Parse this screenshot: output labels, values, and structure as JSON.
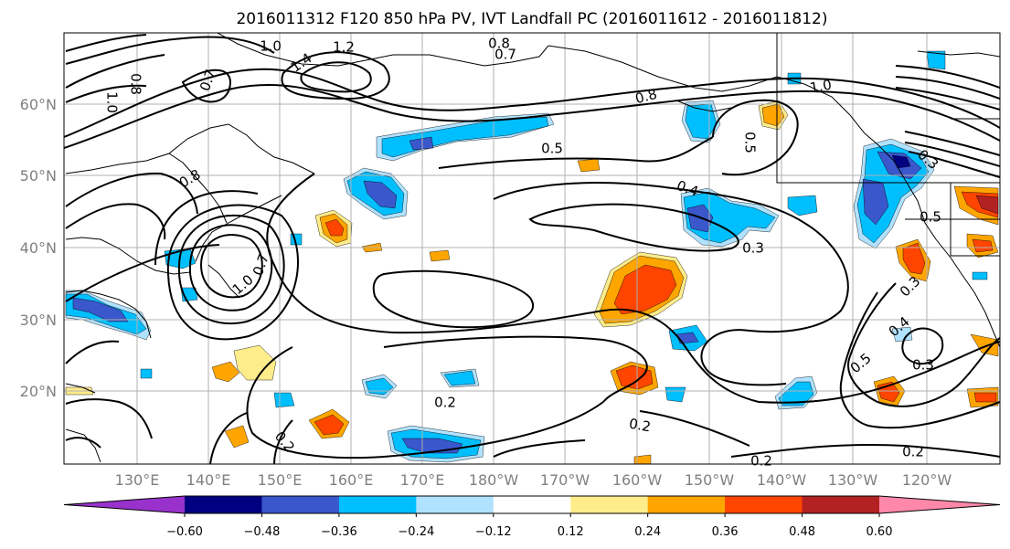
{
  "title": "2016011312 F120 850 hPa PV, IVT Landfall PC (2016011612 - 2016011812)",
  "map": {
    "lon_range": [
      120,
      251
    ],
    "lat_range": [
      10,
      70
    ],
    "lat_ticks": [
      "20°N",
      "30°N",
      "40°N",
      "50°N",
      "60°N"
    ],
    "lon_ticks": [
      "130°E",
      "140°E",
      "150°E",
      "160°E",
      "170°E",
      "180°W",
      "170°W",
      "160°W",
      "150°W",
      "140°W",
      "130°W",
      "120°W"
    ],
    "grid": true,
    "projection": "PlateCarree"
  },
  "colorbar": {
    "tick_labels": [
      "−0.60",
      "−0.48",
      "−0.36",
      "−0.24",
      "−0.12",
      "0.12",
      "0.24",
      "0.36",
      "0.48",
      "0.60"
    ],
    "colors": [
      "#9932cc",
      "#000080",
      "#3a57cc",
      "#00bfff",
      "#b0e2ff",
      "#ffffff",
      "#ffec8b",
      "#ffa500",
      "#ff4500",
      "#b22222",
      "#ff88aa"
    ],
    "extend": "both"
  },
  "contour_labels": [
    "1.0",
    "1.2",
    "1.4",
    "0.7",
    "0.8",
    "1.0",
    "0.8",
    "1.0",
    "0.7",
    "0.5",
    "0.8",
    "1.0",
    "0.5",
    "0.4",
    "0.3",
    "0.7",
    "0.8",
    "0.3",
    "0.2",
    "0.2",
    "0.2",
    "0.2",
    "0.3",
    "0.4",
    "0.5",
    "0.3",
    "0.5",
    "0.2"
  ]
}
